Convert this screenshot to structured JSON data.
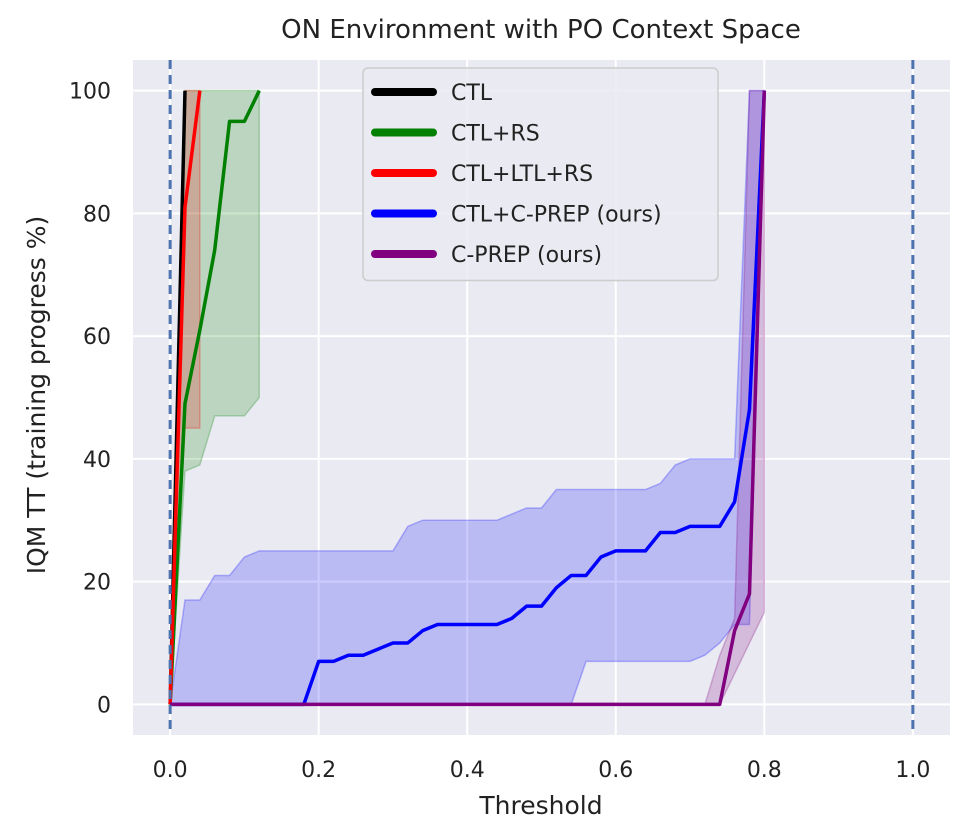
{
  "chart_data": {
    "type": "line",
    "title": "ON Environment with PO Context Space",
    "xlabel": "Threshold",
    "ylabel": "IQM TT (training progress %)",
    "xlim": [
      -0.05,
      1.05
    ],
    "ylim": [
      -5,
      105
    ],
    "xticks": [
      0.0,
      0.2,
      0.4,
      0.6,
      0.8,
      1.0
    ],
    "xtick_labels": [
      "0.0",
      "0.2",
      "0.4",
      "0.6",
      "0.8",
      "1.0"
    ],
    "yticks": [
      0,
      20,
      40,
      60,
      80,
      100
    ],
    "ytick_labels": [
      "0",
      "20",
      "40",
      "60",
      "80",
      "100"
    ],
    "grid": true,
    "legend_position": "top-center",
    "vlines": [
      0.0,
      1.0
    ],
    "vline_color": "#4c72b0",
    "background": "#eaeaf2",
    "series": [
      {
        "name": "CTL",
        "color": "#000000",
        "band_color": "#8c7f7f",
        "x": [
          0.0,
          0.02
        ],
        "y": [
          0,
          100
        ],
        "lower": [
          0,
          100
        ],
        "upper": [
          0,
          100
        ]
      },
      {
        "name": "CTL+RS",
        "color": "#008000",
        "band_color": "#008000",
        "x": [
          0.0,
          0.02,
          0.04,
          0.06,
          0.08,
          0.1,
          0.12
        ],
        "y": [
          0,
          49,
          61,
          74,
          95,
          95,
          100
        ],
        "lower": [
          0,
          38,
          39,
          47,
          47,
          47,
          50
        ],
        "upper": [
          0,
          100,
          100,
          100,
          100,
          100,
          100
        ]
      },
      {
        "name": "CTL+LTL+RS",
        "color": "#ff0000",
        "band_color": "#ff0000",
        "x": [
          0.0,
          0.02,
          0.04
        ],
        "y": [
          0,
          81,
          100
        ],
        "lower": [
          0,
          45,
          45
        ],
        "upper": [
          0,
          100,
          100
        ]
      },
      {
        "name": "CTL+C-PREP (ours)",
        "color": "#0000ff",
        "band_color": "#0000ff",
        "x": [
          0.0,
          0.02,
          0.04,
          0.06,
          0.08,
          0.1,
          0.12,
          0.14,
          0.16,
          0.18,
          0.2,
          0.22,
          0.24,
          0.26,
          0.28,
          0.3,
          0.32,
          0.34,
          0.36,
          0.38,
          0.4,
          0.42,
          0.44,
          0.46,
          0.48,
          0.5,
          0.52,
          0.54,
          0.56,
          0.58,
          0.6,
          0.62,
          0.64,
          0.66,
          0.68,
          0.7,
          0.72,
          0.74,
          0.76,
          0.78,
          0.8
        ],
        "y": [
          0,
          0,
          0,
          0,
          0,
          0,
          0,
          0,
          0,
          0,
          7,
          7,
          8,
          8,
          9,
          10,
          10,
          12,
          13,
          13,
          13,
          13,
          13,
          14,
          16,
          16,
          19,
          21,
          21,
          24,
          25,
          25,
          25,
          28,
          28,
          29,
          29,
          29,
          33,
          48,
          100
        ],
        "lower": [
          0,
          0,
          0,
          0,
          0,
          0,
          0,
          0,
          0,
          0,
          0,
          0,
          0,
          0,
          0,
          0,
          0,
          0,
          0,
          0,
          0,
          0,
          0,
          0,
          0,
          0,
          0,
          0,
          7,
          7,
          7,
          7,
          7,
          7,
          7,
          7,
          8,
          10,
          13,
          13,
          100
        ],
        "upper": [
          0,
          17,
          17,
          21,
          21,
          24,
          25,
          25,
          25,
          25,
          25,
          25,
          25,
          25,
          25,
          25,
          29,
          30,
          30,
          30,
          30,
          30,
          30,
          31,
          32,
          32,
          35,
          35,
          35,
          35,
          35,
          35,
          35,
          36,
          39,
          40,
          40,
          40,
          40,
          100,
          100
        ]
      },
      {
        "name": "C-PREP (ours)",
        "color": "#800080",
        "band_color": "#800080",
        "x": [
          0.0,
          0.72,
          0.74,
          0.76,
          0.78,
          0.8
        ],
        "y": [
          0,
          0,
          0,
          12,
          18,
          100
        ],
        "lower": [
          0,
          0,
          0,
          5,
          10,
          15
        ],
        "upper": [
          0,
          0,
          8,
          14,
          100,
          100
        ]
      }
    ]
  }
}
